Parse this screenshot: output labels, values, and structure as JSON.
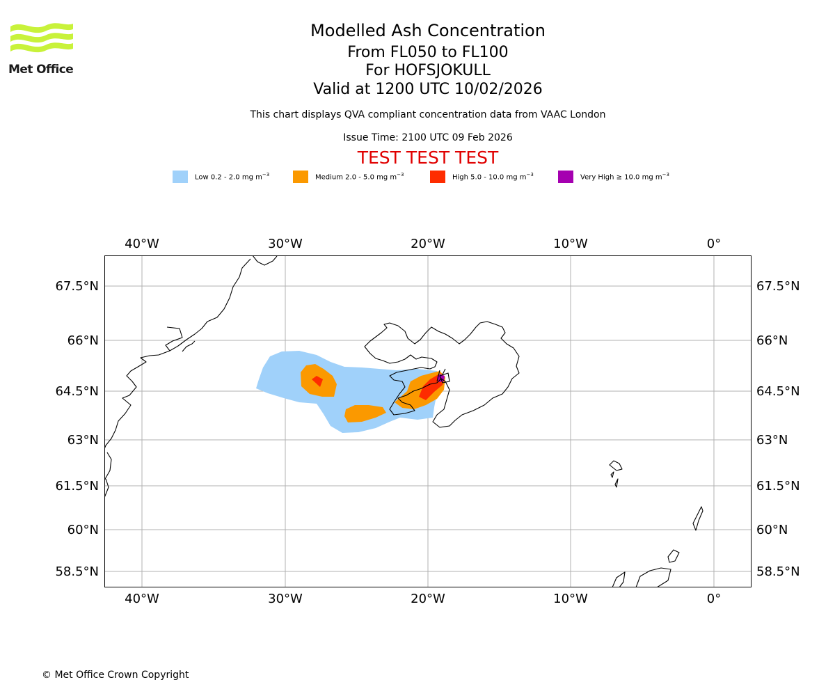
{
  "logo": {
    "text": "Met Office"
  },
  "title": {
    "line1": "Modelled Ash Concentration",
    "line2": "From FL050 to FL100",
    "line3": "For HOFSJOKULL",
    "line4": "Valid at 1200 UTC 10/02/2026"
  },
  "subtitle": {
    "description": "This chart displays QVA compliant concentration data from VAAC London",
    "issue_time": "Issue Time: 2100 UTC 09 Feb 2026",
    "test_banner": "TEST TEST TEST"
  },
  "legend": [
    {
      "label": "Low 0.2 - 2.0 mg m",
      "color": "#a0d1fa"
    },
    {
      "label": "Medium 2.0 - 5.0 mg m",
      "color": "#fb9900"
    },
    {
      "label": "High 5.0 - 10.0 mg m",
      "color": "#fe2c00"
    },
    {
      "label": "Very High ≥ 10.0 mg m",
      "color": "#a500b0"
    }
  ],
  "legend_unit_exponent": "−3",
  "axes": {
    "longitudes": [
      "40°W",
      "30°W",
      "20°W",
      "10°W",
      "0°"
    ],
    "latitudes": [
      "67.5°N",
      "66°N",
      "64.5°N",
      "63°N",
      "61.5°N",
      "60°N",
      "58.5°N"
    ]
  },
  "copyright": "© Met Office Crown Copyright"
}
